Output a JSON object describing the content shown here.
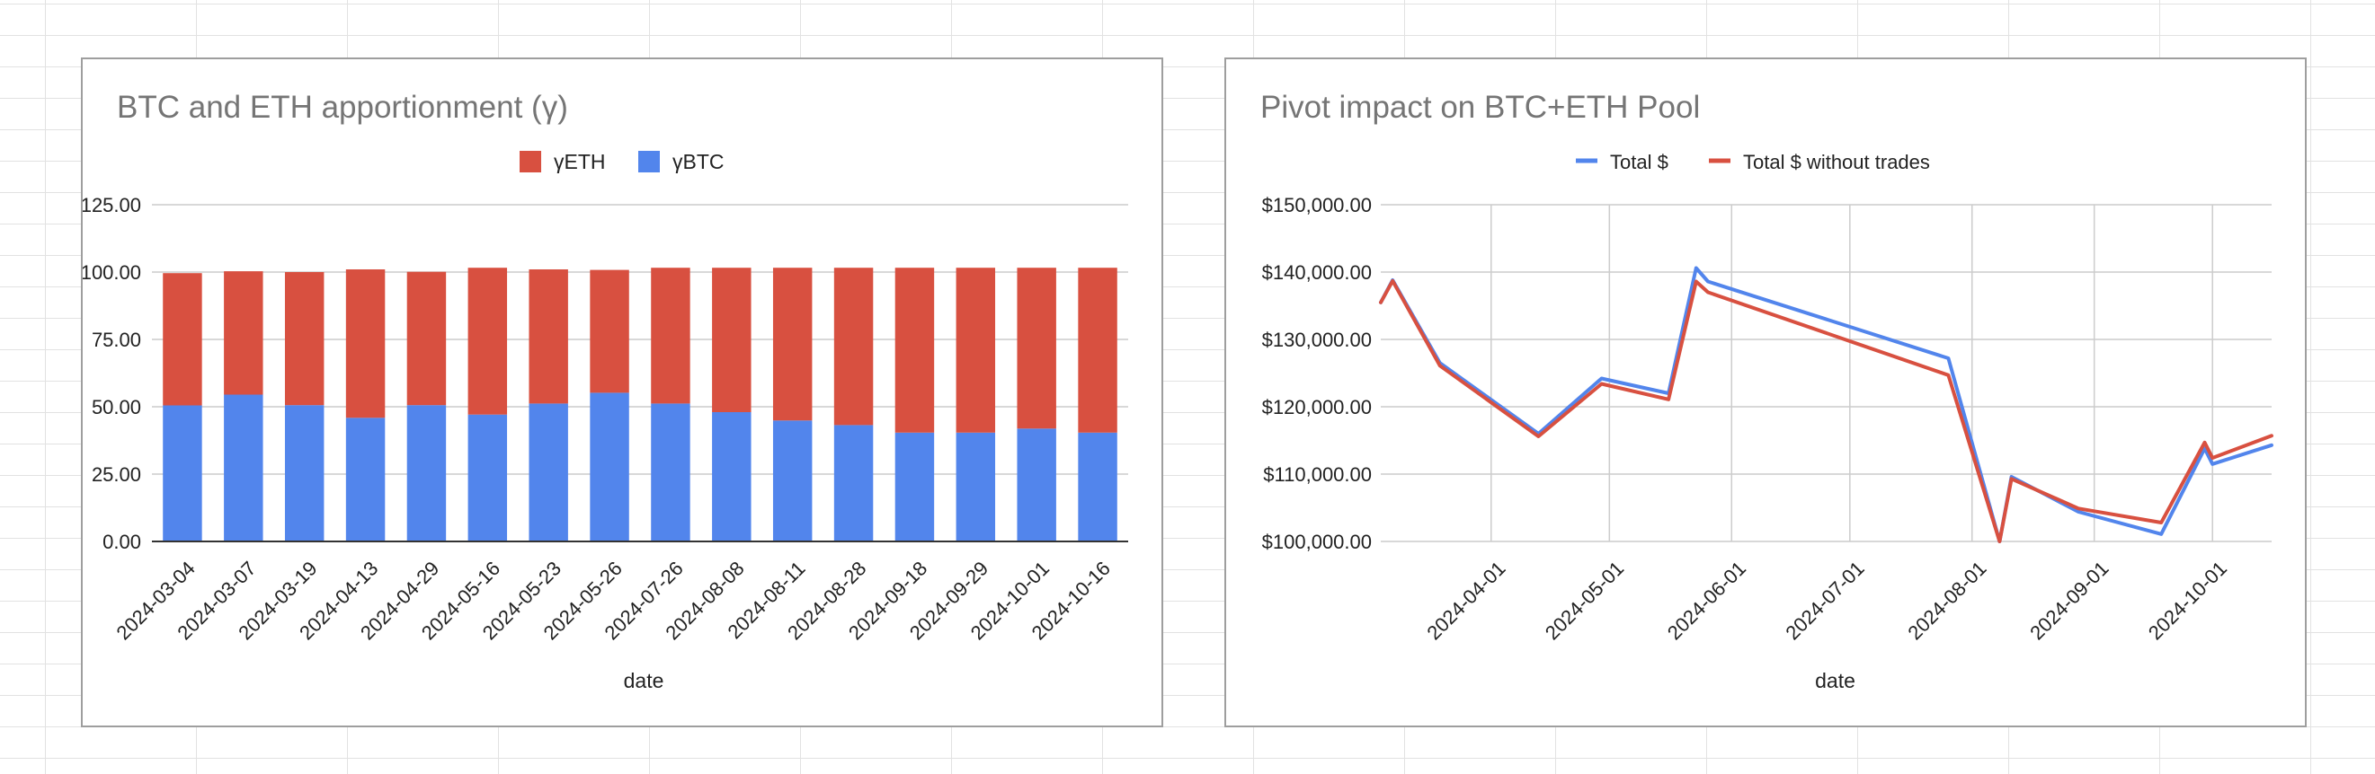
{
  "chart_data": [
    {
      "type": "bar",
      "stacked": true,
      "title": "BTC and ETH apportionment (γ)",
      "xlabel": "date",
      "ylabel": "",
      "ylim": [
        0,
        125
      ],
      "yticks": [
        "0.00",
        "25.00",
        "50.00",
        "75.00",
        "100.00",
        "125.00"
      ],
      "grid": true,
      "legend_position": "top",
      "categories": [
        "2024-03-04",
        "2024-03-07",
        "2024-03-19",
        "2024-04-13",
        "2024-04-29",
        "2024-05-16",
        "2024-05-23",
        "2024-05-26",
        "2024-07-26",
        "2024-08-08",
        "2024-08-11",
        "2024-08-28",
        "2024-09-18",
        "2024-09-29",
        "2024-10-01",
        "2024-10-16"
      ],
      "legend": [
        "γETH",
        "γBTC"
      ],
      "series": [
        {
          "name": "γBTC",
          "color": "#5285ec",
          "values": [
            50.5,
            54.5,
            50.6,
            45.9,
            50.6,
            47.1,
            51.2,
            55.2,
            51.2,
            48.0,
            44.9,
            43.2,
            40.4,
            40.4,
            41.9,
            40.4
          ]
        },
        {
          "name": "γETH",
          "color": "#d85040",
          "values": [
            49.1,
            45.8,
            49.4,
            55.1,
            49.5,
            54.5,
            49.8,
            45.6,
            50.4,
            53.6,
            56.7,
            58.4,
            61.2,
            61.2,
            59.7,
            61.2
          ]
        }
      ]
    },
    {
      "type": "line",
      "title": "Pivot impact on BTC+ETH Pool",
      "xlabel": "date",
      "ylabel": "",
      "ylim": [
        100000,
        150000
      ],
      "yticks": [
        "$100,000.00",
        "$110,000.00",
        "$120,000.00",
        "$130,000.00",
        "$140,000.00",
        "$150,000.00"
      ],
      "xticks": [
        "2024-04-01",
        "2024-05-01",
        "2024-06-01",
        "2024-07-01",
        "2024-08-01",
        "2024-09-01",
        "2024-10-01"
      ],
      "xlim": [
        "2024-03-04",
        "2024-10-16"
      ],
      "grid": true,
      "legend_position": "top",
      "x": [
        "2024-03-04",
        "2024-03-07",
        "2024-03-19",
        "2024-04-13",
        "2024-04-29",
        "2024-05-16",
        "2024-05-23",
        "2024-05-26",
        "2024-07-26",
        "2024-08-08",
        "2024-08-11",
        "2024-08-28",
        "2024-09-18",
        "2024-09-29",
        "2024-10-01",
        "2024-10-16"
      ],
      "series": [
        {
          "name": "Total $",
          "color": "#5285ec",
          "values": [
            135500,
            138800,
            126500,
            116000,
            124200,
            122000,
            140600,
            138600,
            127200,
            100000,
            109600,
            104400,
            101100,
            113800,
            111500,
            114300
          ]
        },
        {
          "name": "Total $ without trades",
          "color": "#d85040",
          "values": [
            135500,
            138700,
            126100,
            115600,
            123400,
            121100,
            138600,
            137000,
            124700,
            100000,
            109300,
            104900,
            102800,
            114700,
            112400,
            115700
          ]
        }
      ]
    }
  ]
}
